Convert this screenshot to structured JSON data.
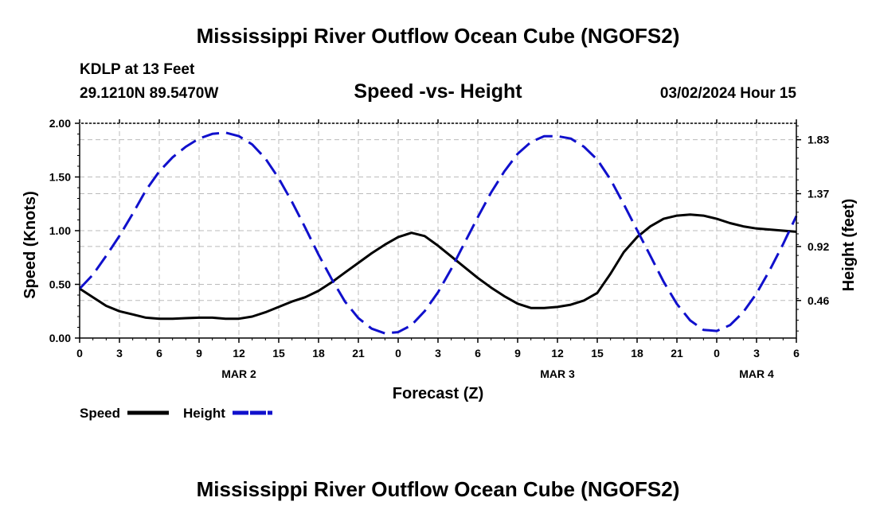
{
  "header": {
    "title": "Mississippi River Outflow Ocean Cube (NGOFS2)",
    "station": "KDLP at 13 Feet",
    "coords": "29.1210N  89.5470W",
    "subtitle": "Speed -vs- Height",
    "datetime": "03/02/2024 Hour 15"
  },
  "footer": {
    "title": "Mississippi River Outflow Ocean Cube (NGOFS2)"
  },
  "colors": {
    "speed": "#000000",
    "height": "#1010cc",
    "grid": "#bbbbbb"
  },
  "chart_data": {
    "type": "line",
    "title": "Speed -vs- Height",
    "xlabel": "Forecast (Z)",
    "ylabel": "Speed (Knots)",
    "y2label": "Height (feet)",
    "xlim": [
      0,
      54
    ],
    "ylim": [
      0,
      2.0
    ],
    "y2lim": [
      0.14,
      1.97
    ],
    "x_ticks": [
      0,
      3,
      6,
      9,
      12,
      15,
      18,
      21,
      24,
      27,
      30,
      33,
      36,
      39,
      42,
      45,
      48,
      51,
      54
    ],
    "x_tick_labels": [
      "0",
      "3",
      "6",
      "9",
      "12",
      "15",
      "18",
      "21",
      "0",
      "3",
      "6",
      "9",
      "12",
      "15",
      "18",
      "21",
      "0",
      "3",
      "6"
    ],
    "date_labels": [
      {
        "x": 12,
        "label": "MAR 2"
      },
      {
        "x": 36,
        "label": "MAR 3"
      },
      {
        "x": 51,
        "label": "MAR 4"
      }
    ],
    "y_ticks": [
      0.0,
      0.5,
      1.0,
      1.5,
      2.0
    ],
    "y_tick_labels": [
      "0.00",
      "0.50",
      "1.00",
      "1.50",
      "2.00"
    ],
    "y2_ticks": [
      0.46,
      0.92,
      1.37,
      1.83
    ],
    "y2_tick_labels": [
      "0.46",
      "0.92",
      "1.37",
      "1.83"
    ],
    "grid": true,
    "legend": [
      {
        "name": "Speed",
        "style": "solid"
      },
      {
        "name": "Height",
        "style": "dashed"
      }
    ],
    "series": [
      {
        "name": "Speed",
        "axis": "left",
        "x": [
          0,
          1,
          2,
          3,
          4,
          5,
          6,
          7,
          8,
          9,
          10,
          11,
          12,
          13,
          14,
          15,
          16,
          17,
          18,
          19,
          20,
          21,
          22,
          23,
          24,
          25,
          26,
          27,
          28,
          29,
          30,
          31,
          32,
          33,
          34,
          35,
          36,
          37,
          38,
          39,
          40,
          41,
          42,
          43,
          44,
          45,
          46,
          47,
          48,
          49,
          50,
          51,
          52,
          53,
          54
        ],
        "values": [
          0.46,
          0.38,
          0.3,
          0.25,
          0.22,
          0.19,
          0.18,
          0.18,
          0.185,
          0.19,
          0.19,
          0.18,
          0.18,
          0.2,
          0.24,
          0.29,
          0.34,
          0.38,
          0.44,
          0.52,
          0.61,
          0.7,
          0.79,
          0.87,
          0.94,
          0.98,
          0.95,
          0.86,
          0.76,
          0.66,
          0.56,
          0.47,
          0.39,
          0.32,
          0.28,
          0.28,
          0.29,
          0.31,
          0.35,
          0.42,
          0.6,
          0.8,
          0.94,
          1.04,
          1.11,
          1.14,
          1.15,
          1.14,
          1.11,
          1.07,
          1.04,
          1.02,
          1.01,
          1.0,
          0.99
        ]
      },
      {
        "name": "Height",
        "axis": "right",
        "x": [
          0,
          1,
          2,
          3,
          4,
          5,
          6,
          7,
          8,
          9,
          10,
          11,
          12,
          13,
          14,
          15,
          16,
          17,
          18,
          19,
          20,
          21,
          22,
          23,
          24,
          25,
          26,
          27,
          28,
          29,
          30,
          31,
          32,
          33,
          34,
          35,
          36,
          37,
          38,
          39,
          40,
          41,
          42,
          43,
          44,
          45,
          46,
          47,
          48,
          49,
          50,
          51,
          52,
          53,
          54
        ],
        "values": [
          0.56,
          0.68,
          0.84,
          1.01,
          1.2,
          1.4,
          1.56,
          1.68,
          1.77,
          1.84,
          1.88,
          1.89,
          1.86,
          1.79,
          1.67,
          1.5,
          1.3,
          1.08,
          0.85,
          0.64,
          0.45,
          0.31,
          0.22,
          0.18,
          0.19,
          0.25,
          0.37,
          0.53,
          0.73,
          0.95,
          1.17,
          1.38,
          1.56,
          1.71,
          1.81,
          1.86,
          1.86,
          1.84,
          1.77,
          1.66,
          1.49,
          1.28,
          1.06,
          0.84,
          0.62,
          0.43,
          0.29,
          0.21,
          0.2,
          0.25,
          0.36,
          0.52,
          0.72,
          0.94,
          1.18
        ]
      }
    ]
  }
}
